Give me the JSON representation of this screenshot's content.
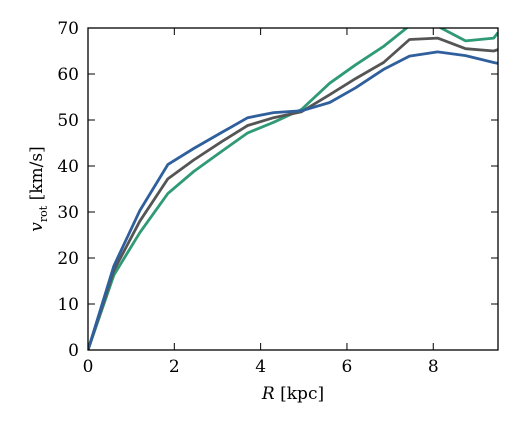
{
  "chart_data": {
    "type": "line",
    "xlabel_var": "R",
    "xlabel_unit": " [kpc]",
    "ylabel_var": "v",
    "ylabel_sub": "rot",
    "ylabel_unit": " [km/s]",
    "xlim": [
      0,
      9.5
    ],
    "ylim": [
      0,
      70
    ],
    "xticks": [
      0,
      2,
      4,
      6,
      8
    ],
    "xtick_labels": [
      "0",
      "2",
      "4",
      "6",
      "8"
    ],
    "yticks": [
      0,
      10,
      20,
      30,
      40,
      50,
      60,
      70
    ],
    "ytick_labels": [
      "0",
      "10",
      "20",
      "30",
      "40",
      "50",
      "60",
      "70"
    ],
    "grid": false,
    "series": [
      {
        "color": "#2f9a76",
        "x": [
          0,
          0.6,
          1.2,
          1.85,
          2.45,
          3.1,
          3.7,
          4.3,
          4.95,
          5.6,
          6.2,
          6.85,
          7.45,
          8.1,
          8.75,
          9.4,
          9.5
        ],
        "y": [
          0,
          16.3,
          25.5,
          34,
          38.8,
          43.2,
          47.2,
          49.5,
          52.3,
          58,
          62,
          66,
          70.5,
          70.4,
          67.2,
          67.8,
          69
        ]
      },
      {
        "color": "#555555",
        "x": [
          0,
          0.6,
          1.2,
          1.85,
          2.45,
          3.1,
          3.7,
          4.3,
          4.95,
          5.6,
          6.2,
          6.85,
          7.45,
          8.1,
          8.75,
          9.4,
          9.5
        ],
        "y": [
          0,
          17.3,
          28,
          37.2,
          41.3,
          45.3,
          48.8,
          50.5,
          51.8,
          55.5,
          59,
          62.5,
          67.5,
          67.8,
          65.5,
          65,
          65.3
        ]
      },
      {
        "color": "#2f5f9c",
        "x": [
          0,
          0.6,
          1.2,
          1.85,
          2.45,
          3.1,
          3.7,
          4.3,
          4.95,
          5.6,
          6.2,
          6.85,
          7.45,
          8.1,
          8.75,
          9.4,
          9.5
        ],
        "y": [
          0,
          18.3,
          30.3,
          40.3,
          43.8,
          47.3,
          50.5,
          51.6,
          52,
          53.8,
          57,
          61,
          63.9,
          64.8,
          64,
          62.5,
          62.3
        ]
      }
    ]
  }
}
